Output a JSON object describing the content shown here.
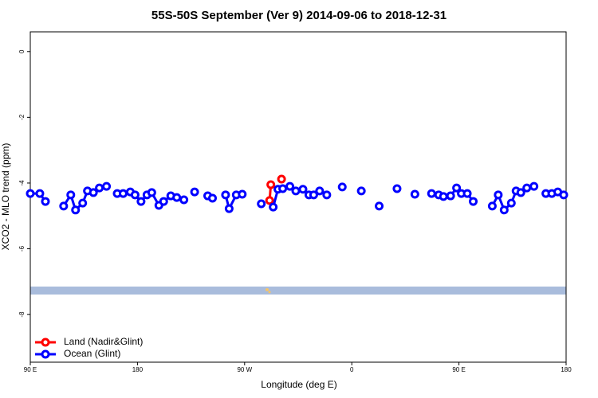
{
  "chart_data": {
    "type": "line",
    "title": "55S-50S September (Ver 9)   2014-09-06 to 2018-12-31",
    "x_label": "Longitude (deg E)",
    "y_label": "XCO2 - MLO trend (ppm)",
    "xlim": [
      90,
      540
    ],
    "xticks": [
      {
        "value": 90,
        "label": "90 E"
      },
      180,
      {
        "value": 270,
        "label": "90 W"
      },
      {
        "value": 360,
        "label": "0"
      },
      {
        "value": 450,
        "label": "90 E"
      },
      {
        "value": 540,
        "label": "180"
      }
    ],
    "ylim": [
      -9.45,
      0.6
    ],
    "yticks": [
      0,
      -2,
      -4,
      -6,
      -8
    ],
    "legend": "bottom-left",
    "series": [
      {
        "name": "Land (Nadir&Glint)",
        "color": "#ff0000",
        "x": [
          291,
          292,
          null,
          301
        ],
        "values": [
          -4.53,
          -4.05,
          null,
          -3.88
        ]
      },
      {
        "name": "Ocean (Glint)",
        "color": "#0000ff",
        "x": [
          90,
          98,
          102.7,
          null,
          118,
          124,
          128,
          134,
          138,
          143,
          148,
          154,
          null,
          163,
          168,
          174,
          178,
          183,
          188,
          192,
          198,
          202,
          208,
          213,
          219,
          null,
          228,
          null,
          239,
          243,
          null,
          254,
          257,
          263,
          268,
          null,
          284,
          null,
          294,
          298,
          302,
          308,
          313,
          319,
          324,
          328,
          333,
          339,
          null,
          352,
          null,
          368,
          null,
          383,
          null,
          398,
          null,
          413,
          null,
          427,
          433,
          437,
          443,
          448,
          452,
          457,
          462,
          null,
          478,
          483,
          488,
          494,
          498,
          502,
          507,
          513,
          null,
          523,
          528,
          533,
          538
        ],
        "values": [
          -4.32,
          -4.32,
          -4.56,
          null,
          -4.7,
          -4.36,
          -4.82,
          -4.61,
          -4.24,
          -4.29,
          -4.15,
          -4.1,
          null,
          -4.32,
          -4.32,
          -4.27,
          -4.36,
          -4.56,
          -4.36,
          -4.29,
          -4.68,
          -4.56,
          -4.39,
          -4.44,
          -4.51,
          null,
          -4.27,
          null,
          -4.39,
          -4.46,
          null,
          -4.36,
          -4.78,
          -4.36,
          -4.34,
          null,
          -4.63,
          null,
          -4.73,
          -4.19,
          -4.17,
          -4.1,
          -4.24,
          -4.19,
          -4.36,
          -4.36,
          -4.24,
          -4.36,
          null,
          -4.12,
          null,
          -4.24,
          null,
          -4.7,
          null,
          -4.17,
          null,
          -4.34,
          null,
          -4.32,
          -4.36,
          -4.41,
          -4.39,
          -4.15,
          -4.32,
          -4.32,
          -4.56,
          null,
          -4.7,
          -4.36,
          -4.82,
          -4.61,
          -4.24,
          -4.29,
          -4.15,
          -4.1,
          null,
          -4.32,
          -4.32,
          -4.27,
          -4.36
        ]
      }
    ]
  }
}
